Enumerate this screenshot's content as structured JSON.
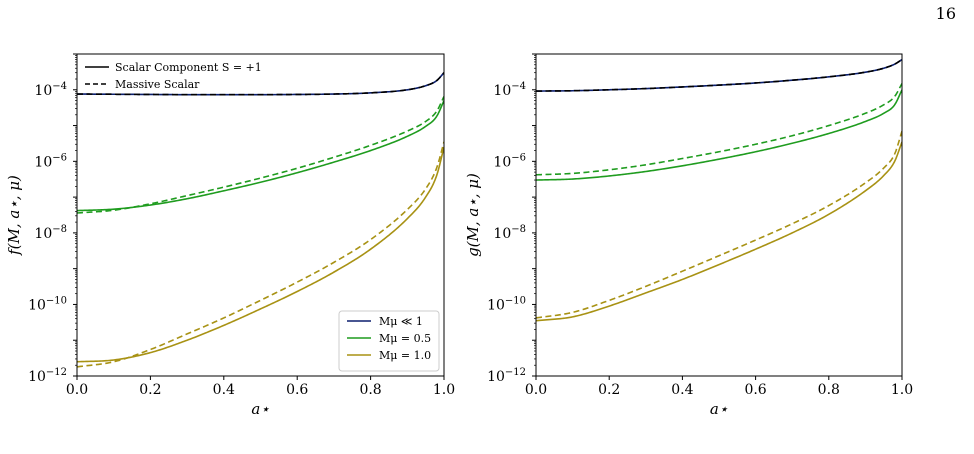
{
  "page_number": "16",
  "colors": {
    "s_small": "#0b1f6e",
    "s_small_dashed": "#000000",
    "mu_0_5": "#1f9c1f",
    "mu_1_0": "#a89214",
    "axes": "#000000"
  },
  "chart_data": [
    {
      "type": "line",
      "title": "",
      "xlabel": "a⋆",
      "ylabel": "f(M, a⋆, μ)",
      "xlim": [
        0.0,
        1.0
      ],
      "ylim": [
        1e-12,
        0.001
      ],
      "yscale": "log",
      "x_ticks": [
        "0.0",
        "0.2",
        "0.4",
        "0.6",
        "0.8",
        "1.0"
      ],
      "y_ticks": [
        {
          "base": "10",
          "exp": "−12"
        },
        {
          "base": "10",
          "exp": "−10"
        },
        {
          "base": "10",
          "exp": "−8"
        },
        {
          "base": "10",
          "exp": "−6"
        },
        {
          "base": "10",
          "exp": "−4"
        }
      ],
      "legends": [
        {
          "placement": "upper-left",
          "entries": [
            {
              "label": "Scalar Component S = +1",
              "style": "solid",
              "color": "#000000"
            },
            {
              "label": "Massive Scalar",
              "style": "dashed",
              "color": "#000000"
            }
          ]
        },
        {
          "placement": "lower-right",
          "entries": [
            {
              "label": "Mμ ≪ 1",
              "style": "solid",
              "color": "#0b1f6e"
            },
            {
              "label": "Mμ = 0.5",
              "style": "solid",
              "color": "#1f9c1f"
            },
            {
              "label": "Mμ = 1.0",
              "style": "solid",
              "color": "#a89214"
            }
          ]
        }
      ],
      "x": [
        0.0,
        0.1,
        0.2,
        0.3,
        0.4,
        0.5,
        0.6,
        0.7,
        0.8,
        0.9,
        0.95,
        0.98,
        1.0
      ],
      "series": [
        {
          "group": "Mμ ≪ 1",
          "style": "solid",
          "color": "#0b1f6e",
          "values": [
            7.6e-05,
            7.5e-05,
            7.4e-05,
            7.3e-05,
            7.3e-05,
            7.3e-05,
            7.4e-05,
            7.6e-05,
            8.2e-05,
            0.0001,
            0.00013,
            0.00018,
            0.0003
          ]
        },
        {
          "group": "Mμ ≪ 1",
          "style": "dashed",
          "color": "#000000",
          "values": [
            7.6e-05,
            7.5e-05,
            7.4e-05,
            7.3e-05,
            7.3e-05,
            7.3e-05,
            7.4e-05,
            7.6e-05,
            8.2e-05,
            0.0001,
            0.00013,
            0.00018,
            0.0003
          ]
        },
        {
          "group": "Mμ = 0.5",
          "style": "solid",
          "color": "#1f9c1f",
          "values": [
            4.2e-08,
            4.6e-08,
            6e-08,
            9e-08,
            1.5e-07,
            2.6e-07,
            4.8e-07,
            9.5e-07,
            2e-06,
            5e-06,
            9.5e-06,
            1.8e-05,
            5e-05
          ]
        },
        {
          "group": "Mμ = 0.5",
          "style": "dashed",
          "color": "#1f9c1f",
          "values": [
            3.6e-08,
            4.3e-08,
            6.5e-08,
            1.1e-07,
            1.9e-07,
            3.4e-07,
            6.4e-07,
            1.3e-06,
            2.8e-06,
            7e-06,
            1.3e-05,
            2.5e-05,
            6.5e-05
          ]
        },
        {
          "group": "Mμ = 1.0",
          "style": "solid",
          "color": "#a89214",
          "values": [
            2.5e-12,
            2.8e-12,
            4.5e-12,
            1e-11,
            2.6e-11,
            7.5e-11,
            2.3e-10,
            8e-10,
            3.5e-09,
            2.5e-08,
            1e-07,
            4e-07,
            2.5e-06
          ]
        },
        {
          "group": "Mμ = 1.0",
          "style": "dashed",
          "color": "#a89214",
          "values": [
            1.8e-12,
            2.5e-12,
            5.5e-12,
            1.5e-11,
            4.2e-11,
            1.3e-10,
            4.2e-10,
            1.5e-09,
            6.5e-09,
            4.5e-08,
            1.7e-07,
            6.5e-07,
            3.5e-06
          ]
        }
      ]
    },
    {
      "type": "line",
      "title": "",
      "xlabel": "a⋆",
      "ylabel": "g(M, a⋆, μ)",
      "xlim": [
        0.0,
        1.0
      ],
      "ylim": [
        1e-12,
        0.001
      ],
      "yscale": "log",
      "x_ticks": [
        "0.0",
        "0.2",
        "0.4",
        "0.6",
        "0.8",
        "1.0"
      ],
      "y_ticks": [
        {
          "base": "10",
          "exp": "−12"
        },
        {
          "base": "10",
          "exp": "−10"
        },
        {
          "base": "10",
          "exp": "−8"
        },
        {
          "base": "10",
          "exp": "−6"
        },
        {
          "base": "10",
          "exp": "−4"
        }
      ],
      "legends": [],
      "x": [
        0.0,
        0.1,
        0.2,
        0.3,
        0.4,
        0.5,
        0.6,
        0.7,
        0.8,
        0.9,
        0.95,
        0.98,
        1.0
      ],
      "series": [
        {
          "group": "Mμ ≪ 1",
          "style": "solid",
          "color": "#0b1f6e",
          "values": [
            9.2e-05,
            9.4e-05,
            0.0001,
            0.000108,
            0.00012,
            0.000135,
            0.000155,
            0.000185,
            0.00023,
            0.00031,
            0.0004,
            0.00052,
            0.0007
          ]
        },
        {
          "group": "Mμ ≪ 1",
          "style": "dashed",
          "color": "#000000",
          "values": [
            9.2e-05,
            9.4e-05,
            0.0001,
            0.000108,
            0.00012,
            0.000135,
            0.000155,
            0.000185,
            0.00023,
            0.00031,
            0.0004,
            0.00052,
            0.0007
          ]
        },
        {
          "group": "Mμ = 0.5",
          "style": "solid",
          "color": "#1f9c1f",
          "values": [
            3e-07,
            3.2e-07,
            3.9e-07,
            5.2e-07,
            7.5e-07,
            1.15e-06,
            1.85e-06,
            3.2e-06,
            6e-06,
            1.3e-05,
            2.2e-05,
            3.8e-05,
            0.0001
          ]
        },
        {
          "group": "Mμ = 0.5",
          "style": "dashed",
          "color": "#1f9c1f",
          "values": [
            4.2e-07,
            4.6e-07,
            5.8e-07,
            8e-07,
            1.2e-06,
            1.85e-06,
            3e-06,
            5.2e-06,
            1e-05,
            2.2e-05,
            3.8e-05,
            6.5e-05,
            0.00015
          ]
        },
        {
          "group": "Mμ = 1.0",
          "style": "solid",
          "color": "#a89214",
          "values": [
            3.5e-11,
            4.5e-11,
            9e-11,
            2.1e-10,
            5e-10,
            1.3e-09,
            3.5e-09,
            1e-08,
            3.3e-08,
            1.5e-07,
            4e-07,
            1e-06,
            3.5e-06
          ]
        },
        {
          "group": "Mμ = 1.0",
          "style": "dashed",
          "color": "#a89214",
          "values": [
            4.2e-11,
            6e-11,
            1.3e-10,
            3.2e-10,
            8.5e-10,
            2.3e-09,
            6.3e-09,
            1.8e-08,
            5.8e-08,
            2.5e-07,
            6.5e-07,
            1.6e-06,
            7e-06
          ]
        }
      ]
    }
  ]
}
